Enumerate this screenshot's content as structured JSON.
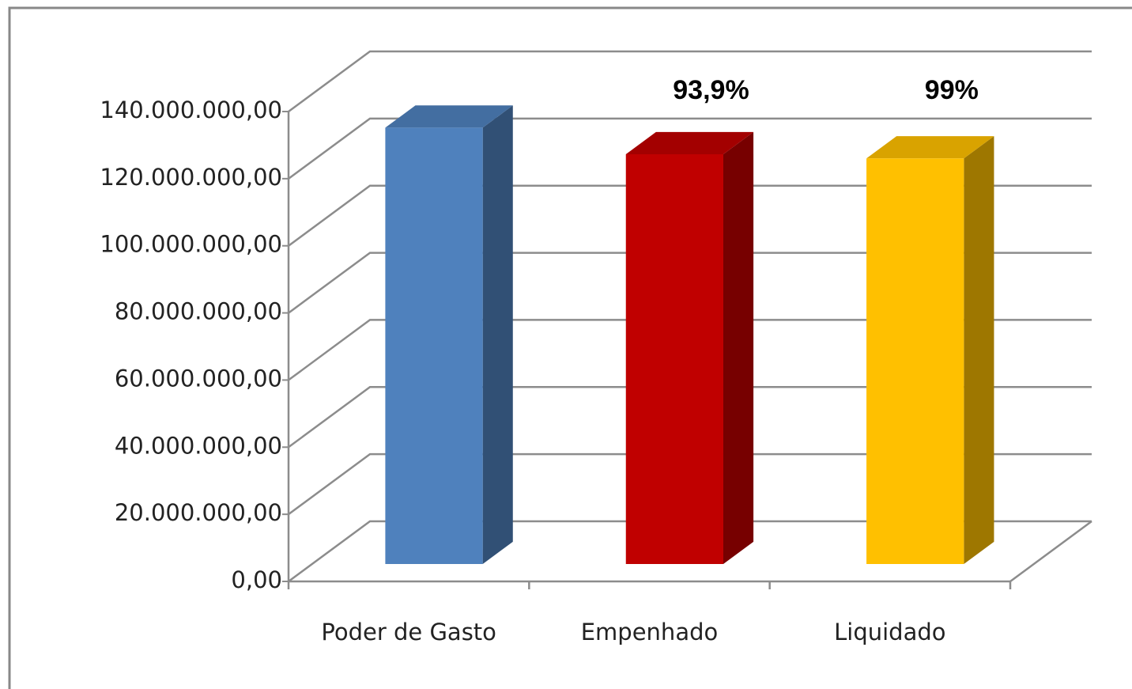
{
  "chart_data": {
    "type": "bar3d",
    "categories": [
      "Poder de Gasto",
      "Empenhado",
      "Liquidado"
    ],
    "values": [
      130000000,
      122070000,
      120850000
    ],
    "colors": [
      "#4f81bd",
      "#c00000",
      "#ffc000"
    ],
    "annotations": [
      {
        "category": "Empenhado",
        "text": "93,9%"
      },
      {
        "category": "Liquidado",
        "text": "99%"
      }
    ],
    "ylim": [
      0,
      140000000
    ],
    "yticks": [
      {
        "value": 0,
        "label": "0,00"
      },
      {
        "value": 20000000,
        "label": "20.000.000,00"
      },
      {
        "value": 40000000,
        "label": "40.000.000,00"
      },
      {
        "value": 60000000,
        "label": "60.000.000,00"
      },
      {
        "value": 80000000,
        "label": "80.000.000,00"
      },
      {
        "value": 100000000,
        "label": "100.000.000,00"
      },
      {
        "value": 120000000,
        "label": "120.000.000,00"
      },
      {
        "value": 140000000,
        "label": "140.000.000,00"
      }
    ],
    "grid": true
  }
}
